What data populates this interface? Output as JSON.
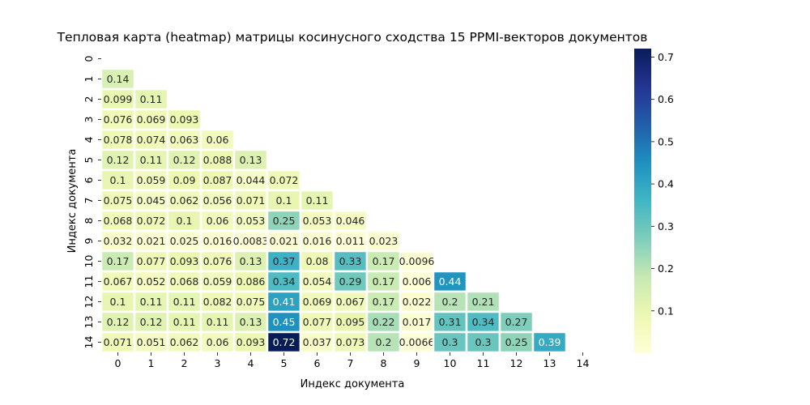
{
  "chart_data": {
    "type": "heatmap",
    "title": "Тепловая карта (heatmap) матрицы косинусного сходства 15 PPMI-векторов документов",
    "xlabel": "Индекс документа",
    "ylabel": "Индекс документа",
    "x_ticks": [
      "0",
      "1",
      "2",
      "3",
      "4",
      "5",
      "6",
      "7",
      "8",
      "9",
      "10",
      "11",
      "12",
      "13",
      "14"
    ],
    "y_ticks": [
      "0",
      "1",
      "2",
      "3",
      "4",
      "5",
      "6",
      "7",
      "8",
      "9",
      "10",
      "11",
      "12",
      "13",
      "14"
    ],
    "mask": "upper-triangle-including-diagonal",
    "colormap": "YlGnBu",
    "vmin": 0.0,
    "vmax": 0.72,
    "colorbar_ticks": [
      "0.1",
      "0.2",
      "0.3",
      "0.4",
      "0.5",
      "0.6",
      "0.7"
    ],
    "rows": [
      [],
      [
        "0.14"
      ],
      [
        "0.099",
        "0.11"
      ],
      [
        "0.076",
        "0.069",
        "0.093"
      ],
      [
        "0.078",
        "0.074",
        "0.063",
        "0.06"
      ],
      [
        "0.12",
        "0.11",
        "0.12",
        "0.088",
        "0.13"
      ],
      [
        "0.1",
        "0.059",
        "0.09",
        "0.087",
        "0.044",
        "0.072"
      ],
      [
        "0.075",
        "0.045",
        "0.062",
        "0.056",
        "0.071",
        "0.1",
        "0.11"
      ],
      [
        "0.068",
        "0.072",
        "0.1",
        "0.06",
        "0.053",
        "0.25",
        "0.053",
        "0.046"
      ],
      [
        "0.032",
        "0.021",
        "0.025",
        "0.016",
        "0.0083",
        "0.021",
        "0.016",
        "0.011",
        "0.023"
      ],
      [
        "0.17",
        "0.077",
        "0.093",
        "0.076",
        "0.13",
        "0.37",
        "0.08",
        "0.33",
        "0.17",
        "0.0096"
      ],
      [
        "0.067",
        "0.052",
        "0.068",
        "0.059",
        "0.086",
        "0.34",
        "0.054",
        "0.29",
        "0.17",
        "0.006",
        "0.44"
      ],
      [
        "0.1",
        "0.11",
        "0.11",
        "0.082",
        "0.075",
        "0.41",
        "0.069",
        "0.067",
        "0.17",
        "0.022",
        "0.2",
        "0.21"
      ],
      [
        "0.12",
        "0.12",
        "0.11",
        "0.11",
        "0.13",
        "0.45",
        "0.077",
        "0.095",
        "0.22",
        "0.017",
        "0.31",
        "0.34",
        "0.27"
      ],
      [
        "0.071",
        "0.051",
        "0.062",
        "0.06",
        "0.093",
        "0.72",
        "0.037",
        "0.073",
        "0.2",
        "0.0066",
        "0.3",
        "0.3",
        "0.25",
        "0.39"
      ]
    ]
  }
}
